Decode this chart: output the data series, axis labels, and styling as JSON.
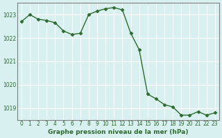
{
  "x": [
    0,
    1,
    2,
    3,
    4,
    5,
    6,
    7,
    8,
    9,
    10,
    11,
    12,
    13,
    14,
    15,
    16,
    17,
    18,
    19,
    20,
    21,
    22,
    23
  ],
  "y": [
    1022.7,
    1023.0,
    1022.8,
    1022.75,
    1022.65,
    1022.3,
    1022.15,
    1022.2,
    1023.0,
    1023.15,
    1023.25,
    1023.3,
    1023.2,
    1022.2,
    1021.5,
    1019.6,
    1019.4,
    1019.15,
    1019.05,
    1018.7,
    1018.7,
    1018.85,
    1018.7,
    1018.8
  ],
  "line_color": "#2d6a2d",
  "marker_color": "#2d6a2d",
  "bg_color": "#d8f0f0",
  "grid_color": "#ffffff",
  "xlabel": "Graphe pression niveau de la mer (hPa)",
  "xlabel_color": "#2d6a2d",
  "tick_color": "#2d6a2d",
  "ylim": [
    1018.5,
    1023.5
  ],
  "xlim": [
    -0.5,
    23.5
  ],
  "yticks": [
    1019,
    1020,
    1021,
    1022,
    1023
  ],
  "xticks": [
    0,
    1,
    2,
    3,
    4,
    5,
    6,
    7,
    8,
    9,
    10,
    11,
    12,
    13,
    14,
    15,
    16,
    17,
    18,
    19,
    20,
    21,
    22,
    23
  ],
  "title_color": "#2d6a2d",
  "spine_color": "#808080"
}
